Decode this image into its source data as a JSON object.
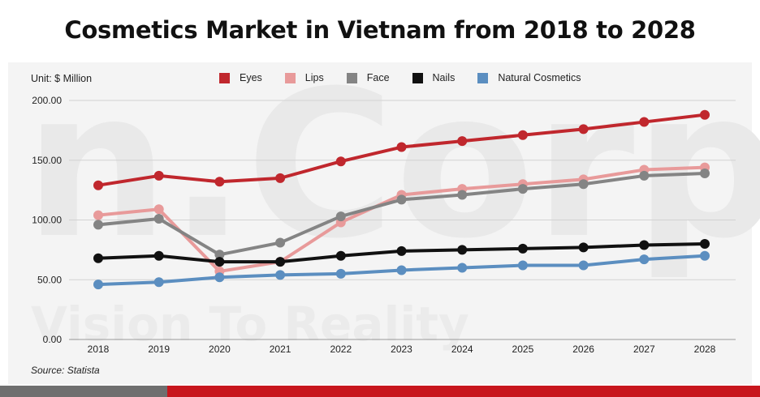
{
  "header": {
    "title": "Cosmetics Market in Vietnam from 2018 to 2028"
  },
  "unit_label": "Unit: $ Million",
  "source": "Source: Statista",
  "watermark": {
    "logo_text": "n.Corp",
    "tagline": "Vision To Reality"
  },
  "colors": {
    "Eyes": "#c0272d",
    "Lips": "#e89a9a",
    "Face": "#848484",
    "Nails": "#111111",
    "Natural Cosmetics": "#5b8ec0",
    "footer_left": "#6f6f6f",
    "footer_right": "#c8161d"
  },
  "chart_data": {
    "type": "line",
    "title": "Cosmetics Market in Vietnam from 2018 to 2028",
    "xlabel": "",
    "ylabel": "",
    "x": [
      "2018",
      "2019",
      "2020",
      "2021",
      "2022",
      "2023",
      "2024",
      "2025",
      "2026",
      "2027",
      "2028"
    ],
    "ylim": [
      0,
      200
    ],
    "yticks": [
      "0.00",
      "50.00",
      "100.00",
      "150.00",
      "200.00"
    ],
    "grid": true,
    "legend_position": "top",
    "series": [
      {
        "name": "Eyes",
        "values": [
          129,
          137,
          132,
          135,
          149,
          161,
          166,
          171,
          176,
          182,
          188
        ]
      },
      {
        "name": "Lips",
        "values": [
          104,
          109,
          57,
          65,
          98,
          121,
          126,
          130,
          134,
          142,
          144
        ]
      },
      {
        "name": "Face",
        "values": [
          96,
          101,
          71,
          81,
          103,
          117,
          121,
          126,
          130,
          137,
          139
        ]
      },
      {
        "name": "Nails",
        "values": [
          68,
          70,
          65,
          65,
          70,
          74,
          75,
          76,
          77,
          79,
          80
        ]
      },
      {
        "name": "Natural Cosmetics",
        "values": [
          46,
          48,
          52,
          54,
          55,
          58,
          60,
          62,
          62,
          67,
          70
        ]
      }
    ]
  }
}
